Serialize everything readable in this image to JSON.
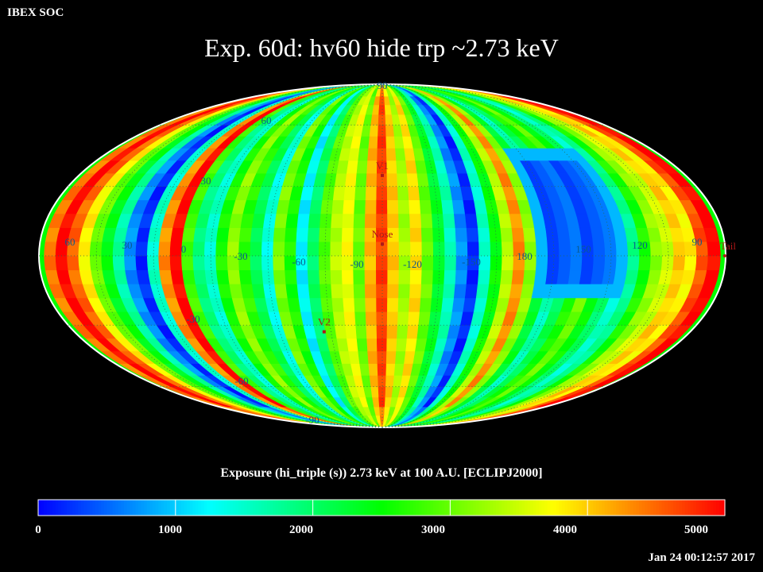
{
  "header": {
    "corner_label": "IBEX SOC",
    "title": "Exp.   60d: hv60 hide trp ~2.73 keV"
  },
  "colorbar": {
    "title": "Exposure (hi_triple (s))  2.73 keV at 100 A.U. [ECLIPJ2000]",
    "ticks": [
      "0",
      "1000",
      "2000",
      "3000",
      "4000",
      "5000"
    ]
  },
  "timestamp": "Jan 24 00:12:57 2017",
  "chart_data": {
    "type": "heatmap",
    "projection": "mollweide",
    "title": "Exp.   60d: hv60 hide trp ~2.73 keV",
    "quantity": "Exposure (hi_triple (s))",
    "energy": "2.73 keV",
    "distance": "100 A.U.",
    "frame": "ECLIPJ2000",
    "value_range": [
      0,
      5000
    ],
    "colorscale": [
      "#0000ff",
      "#00ffff",
      "#00ff00",
      "#ffff00",
      "#ff0000"
    ],
    "longitude_labels": [
      "60",
      "30",
      "0",
      "-30",
      "-60",
      "-90",
      "-120",
      "-150",
      "180",
      "150",
      "120",
      "90"
    ],
    "latitude_labels": [
      "90",
      "60",
      "30",
      "-30",
      "-60",
      "-90"
    ],
    "markers": [
      {
        "label": "V1",
        "lon": 255,
        "lat": 35
      },
      {
        "label": "Nose",
        "lon": 255,
        "lat": 5
      },
      {
        "label": "V2",
        "lon": 289,
        "lat": -33
      },
      {
        "label": "Tail",
        "lon": 75,
        "lat": -5
      }
    ],
    "meridian_strips": [
      {
        "lon": 75,
        "value": 2700
      },
      {
        "lon": 69,
        "value": 4400
      },
      {
        "lon": 63,
        "value": 5000
      },
      {
        "lon": 57,
        "value": 4500
      },
      {
        "lon": 51,
        "value": 3800
      },
      {
        "lon": 45,
        "value": 3000
      },
      {
        "lon": 39,
        "value": 2400
      },
      {
        "lon": 33,
        "value": 1700
      },
      {
        "lon": 27,
        "value": 700
      },
      {
        "lon": 21,
        "value": 200
      },
      {
        "lon": 15,
        "value": 1500
      },
      {
        "lon": 9,
        "value": 4300
      },
      {
        "lon": 3,
        "value": 5000
      },
      {
        "lon": -3,
        "value": 2800
      },
      {
        "lon": -9,
        "value": 1900
      },
      {
        "lon": -15,
        "value": 1500
      },
      {
        "lon": -21,
        "value": 2600
      },
      {
        "lon": -27,
        "value": 3200
      },
      {
        "lon": -33,
        "value": 2700
      },
      {
        "lon": -39,
        "value": 2100
      },
      {
        "lon": -45,
        "value": 1400
      },
      {
        "lon": -51,
        "value": 3100
      },
      {
        "lon": -57,
        "value": 2600
      },
      {
        "lon": -63,
        "value": 1200
      },
      {
        "lon": -69,
        "value": 2000
      },
      {
        "lon": -75,
        "value": 2900
      },
      {
        "lon": -81,
        "value": 3400
      },
      {
        "lon": -87,
        "value": 3700
      },
      {
        "lon": -93,
        "value": 3000
      },
      {
        "lon": -99,
        "value": 4100
      },
      {
        "lon": -105,
        "value": 4700
      },
      {
        "lon": -111,
        "value": 4000
      },
      {
        "lon": -117,
        "value": 3300
      },
      {
        "lon": -123,
        "value": 3900
      },
      {
        "lon": -129,
        "value": 3000
      },
      {
        "lon": -135,
        "value": 2300
      },
      {
        "lon": -141,
        "value": 1600
      },
      {
        "lon": -147,
        "value": 700
      },
      {
        "lon": -153,
        "value": 200
      },
      {
        "lon": -159,
        "value": 1500
      },
      {
        "lon": -165,
        "value": 2500
      },
      {
        "lon": -171,
        "value": 3400
      },
      {
        "lon": -177,
        "value": 4300
      },
      {
        "lon": 177,
        "value": 3200
      },
      {
        "lon": 171,
        "value": 2300
      },
      {
        "lon": 165,
        "value": 1600
      },
      {
        "lon": 159,
        "value": 2100
      },
      {
        "lon": 153,
        "value": 2600
      },
      {
        "lon": 147,
        "value": 3000
      },
      {
        "lon": 141,
        "value": 2500
      },
      {
        "lon": 135,
        "value": 2000
      },
      {
        "lon": 129,
        "value": 1500
      },
      {
        "lon": 123,
        "value": 1800
      },
      {
        "lon": 117,
        "value": 2600
      },
      {
        "lon": 111,
        "value": 3200
      },
      {
        "lon": 105,
        "value": 3500
      },
      {
        "lon": 99,
        "value": 4000
      },
      {
        "lon": 93,
        "value": 3800
      },
      {
        "lon": 87,
        "value": 4600
      },
      {
        "lon": 81,
        "value": 5000
      }
    ],
    "low_exposure_region": {
      "lon_range": [
        128,
        172
      ],
      "lat_range": [
        -20,
        45
      ],
      "value": 300
    }
  }
}
